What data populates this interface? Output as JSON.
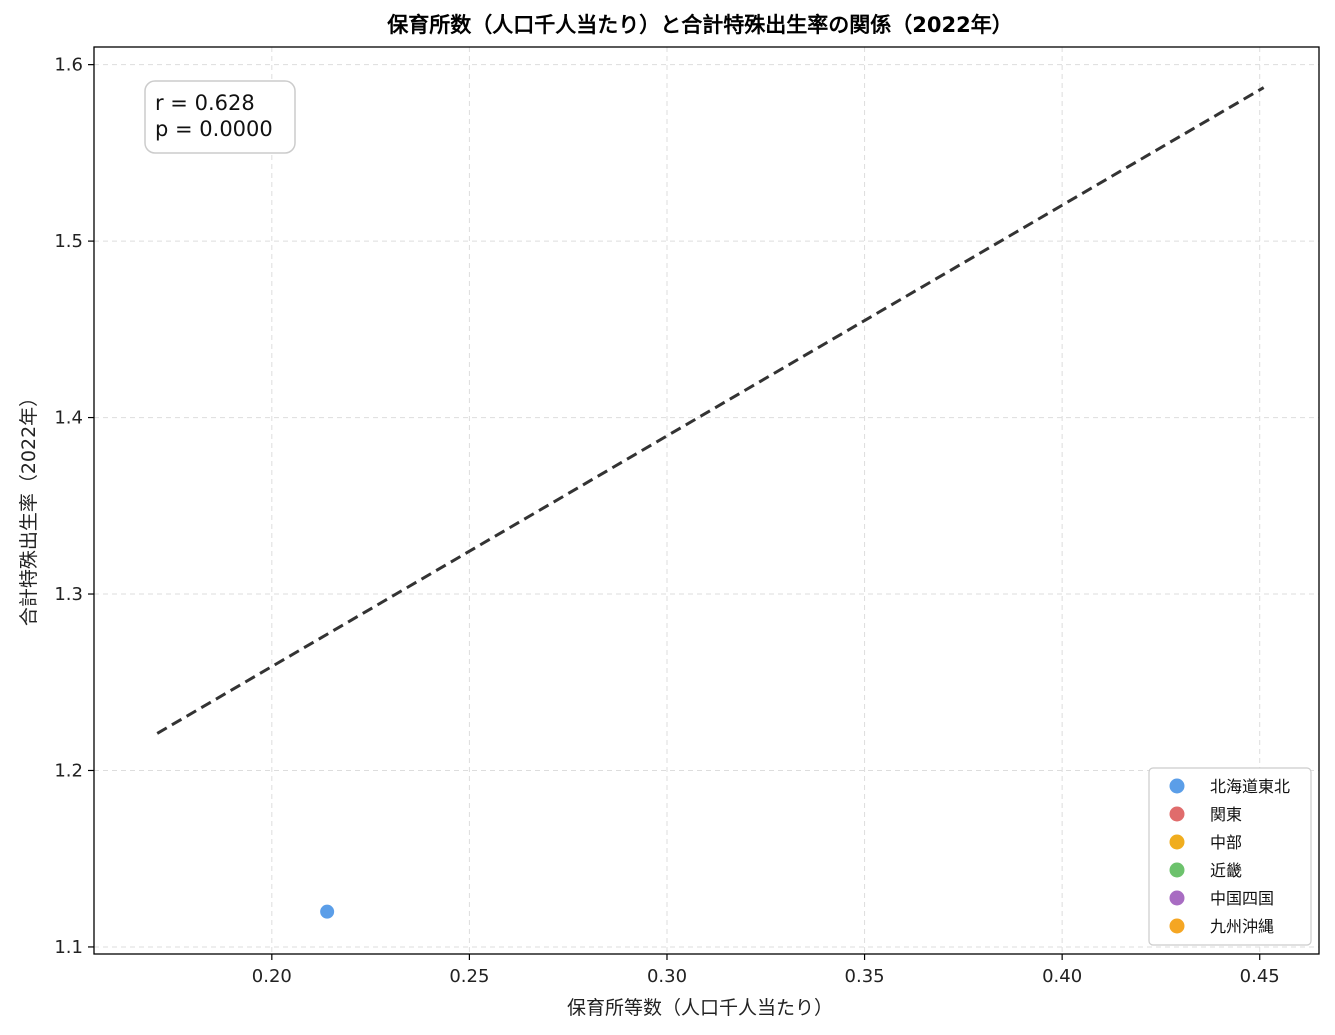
{
  "chart_data": {
    "type": "scatter",
    "title": "保育所数（人口千人当たり）と合計特殊出生率の関係（2022年）",
    "xlabel": "保育所等数（人口千人当たり）",
    "ylabel": "合計特殊出生率（2022年）",
    "xlim": [
      0.155,
      0.465
    ],
    "ylim": [
      1.096,
      1.61
    ],
    "xticks": [
      "0.20",
      "0.25",
      "0.30",
      "0.35",
      "0.40",
      "0.45"
    ],
    "yticks": [
      "1.1",
      "1.2",
      "1.3",
      "1.4",
      "1.5",
      "1.6"
    ],
    "grid": true,
    "legend_position": "lower-right",
    "series": [
      {
        "name": "北海道東北",
        "color": "#5b9ee8",
        "points": [
          {
            "x": 0.214,
            "y": 1.12
          }
        ]
      },
      {
        "name": "関東",
        "color": "#e06c6c",
        "points": []
      },
      {
        "name": "中部",
        "color": "#f0ad1e",
        "points": []
      },
      {
        "name": "近畿",
        "color": "#6cc26c",
        "points": []
      },
      {
        "name": "中国四国",
        "color": "#a86cc2",
        "points": []
      },
      {
        "name": "九州沖縄",
        "color": "#f5a623",
        "points": []
      }
    ],
    "regression_line": {
      "x": [
        0.171,
        0.451
      ],
      "y": [
        1.221,
        1.587
      ],
      "color": "#333333",
      "style": "dashed"
    },
    "stats": {
      "r_text": "r = 0.628",
      "p_text": "p = 0.0000"
    }
  }
}
